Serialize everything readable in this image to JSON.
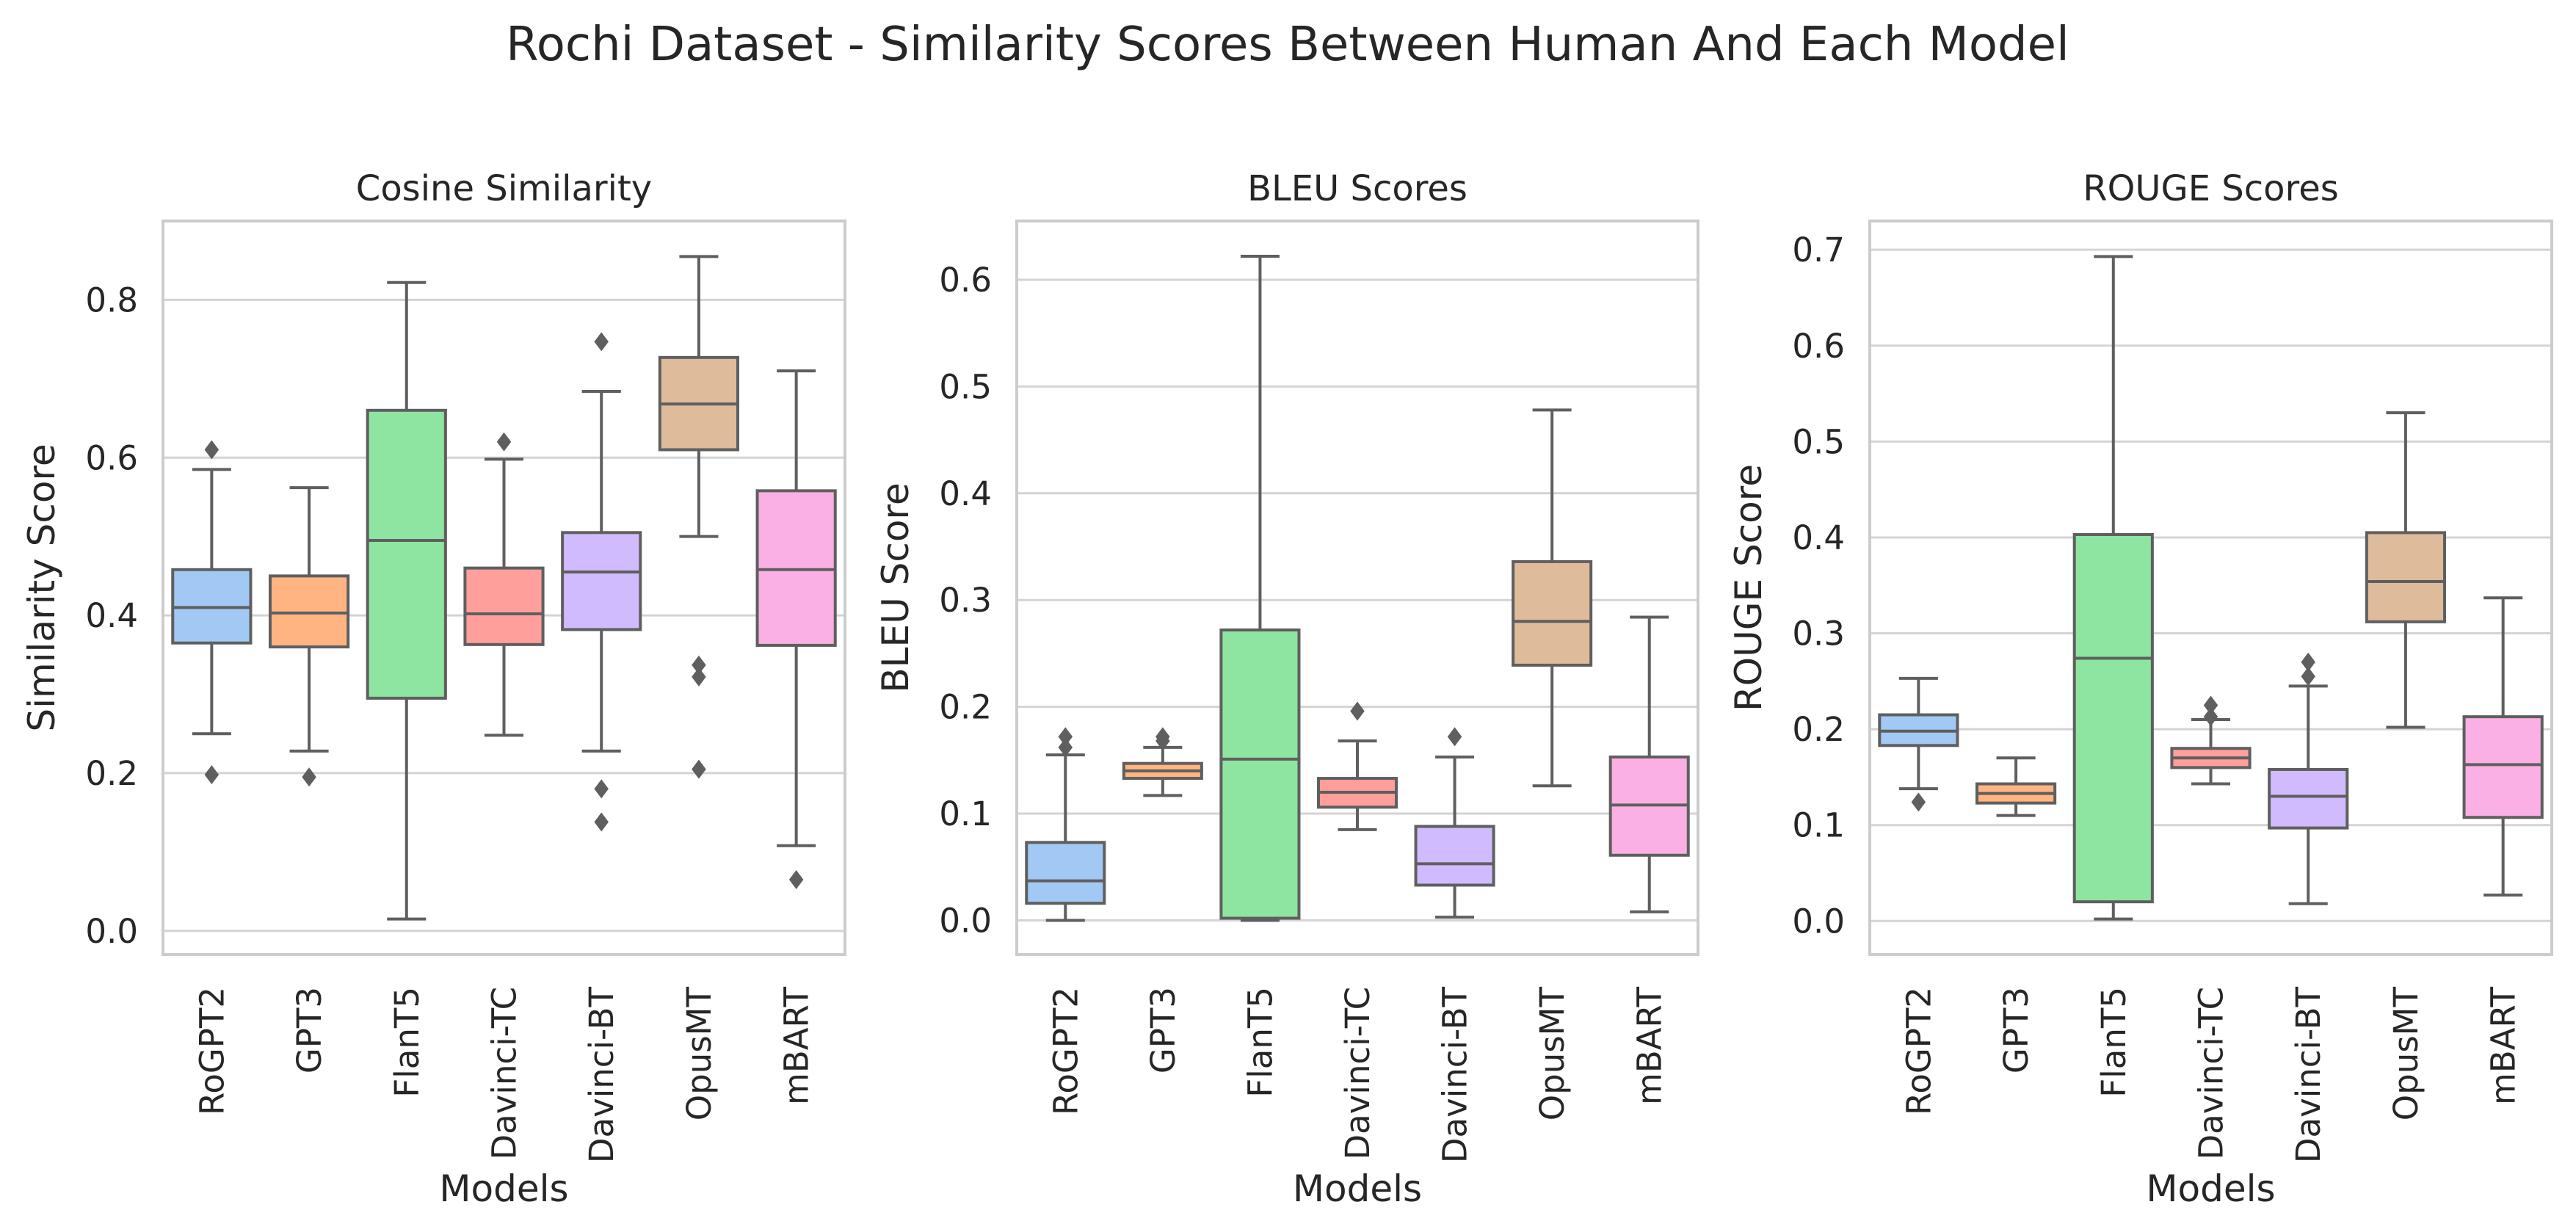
{
  "title": "Rochi Dataset - Similarity Scores Between Human And Each Model",
  "colors": {
    "box_fills": [
      "#a1c9f4",
      "#ffb482",
      "#8de5a1",
      "#ff9f9b",
      "#d0bbff",
      "#debb9b",
      "#fab0e4"
    ],
    "lines": "#5f5f5f",
    "grid": "#d4d4d4",
    "frame": "#cccccc"
  },
  "chart_data": [
    {
      "type": "box",
      "title": "Cosine Similarity",
      "xlabel": "Models",
      "ylabel": "Similarity Score",
      "ylim": [
        -0.03,
        0.9
      ],
      "yticks": [
        0.0,
        0.2,
        0.4,
        0.6,
        0.8
      ],
      "grid": true,
      "categories": [
        "RoGPT2",
        "GPT3",
        "FlanT5",
        "Davinci-TC",
        "Davinci-BT",
        "OpusMT",
        "mBART"
      ],
      "boxes": [
        {
          "whislo": 0.25,
          "q1": 0.365,
          "med": 0.41,
          "q3": 0.458,
          "whishi": 0.585,
          "fliers": [
            0.61,
            0.198
          ]
        },
        {
          "whislo": 0.228,
          "q1": 0.36,
          "med": 0.403,
          "q3": 0.45,
          "whishi": 0.562,
          "fliers": [
            0.195
          ]
        },
        {
          "whislo": 0.015,
          "q1": 0.295,
          "med": 0.495,
          "q3": 0.66,
          "whishi": 0.822,
          "fliers": []
        },
        {
          "whislo": 0.248,
          "q1": 0.363,
          "med": 0.402,
          "q3": 0.46,
          "whishi": 0.598,
          "fliers": [
            0.62
          ]
        },
        {
          "whislo": 0.228,
          "q1": 0.382,
          "med": 0.455,
          "q3": 0.505,
          "whishi": 0.684,
          "fliers": [
            0.747,
            0.18,
            0.138
          ]
        },
        {
          "whislo": 0.5,
          "q1": 0.61,
          "med": 0.668,
          "q3": 0.727,
          "whishi": 0.855,
          "fliers": [
            0.337,
            0.322,
            0.205
          ]
        },
        {
          "whislo": 0.108,
          "q1": 0.362,
          "med": 0.458,
          "q3": 0.558,
          "whishi": 0.71,
          "fliers": [
            0.065
          ]
        }
      ]
    },
    {
      "type": "box",
      "title": "BLEU Scores",
      "xlabel": "Models",
      "ylabel": "BLEU Score",
      "ylim": [
        -0.032,
        0.655
      ],
      "yticks": [
        0.0,
        0.1,
        0.2,
        0.3,
        0.4,
        0.5,
        0.6
      ],
      "grid": true,
      "categories": [
        "RoGPT2",
        "GPT3",
        "FlanT5",
        "Davinci-TC",
        "Davinci-BT",
        "OpusMT",
        "mBART"
      ],
      "boxes": [
        {
          "whislo": 0.0,
          "q1": 0.016,
          "med": 0.037,
          "q3": 0.073,
          "whishi": 0.155,
          "fliers": [
            0.172,
            0.162
          ]
        },
        {
          "whislo": 0.117,
          "q1": 0.133,
          "med": 0.14,
          "q3": 0.147,
          "whishi": 0.162,
          "fliers": [
            0.172,
            0.168
          ]
        },
        {
          "whislo": 0.0,
          "q1": 0.002,
          "med": 0.151,
          "q3": 0.272,
          "whishi": 0.622,
          "fliers": []
        },
        {
          "whislo": 0.085,
          "q1": 0.106,
          "med": 0.12,
          "q3": 0.133,
          "whishi": 0.168,
          "fliers": [
            0.196
          ]
        },
        {
          "whislo": 0.003,
          "q1": 0.033,
          "med": 0.053,
          "q3": 0.088,
          "whishi": 0.153,
          "fliers": [
            0.172
          ]
        },
        {
          "whislo": 0.126,
          "q1": 0.239,
          "med": 0.28,
          "q3": 0.336,
          "whishi": 0.478,
          "fliers": []
        },
        {
          "whislo": 0.008,
          "q1": 0.061,
          "med": 0.108,
          "q3": 0.153,
          "whishi": 0.284,
          "fliers": []
        }
      ]
    },
    {
      "type": "box",
      "title": "ROUGE Scores",
      "xlabel": "Models",
      "ylabel": "ROUGE Score",
      "ylim": [
        -0.035,
        0.73
      ],
      "yticks": [
        0.0,
        0.1,
        0.2,
        0.3,
        0.4,
        0.5,
        0.6,
        0.7
      ],
      "grid": true,
      "categories": [
        "RoGPT2",
        "GPT3",
        "FlanT5",
        "Davinci-TC",
        "Davinci-BT",
        "OpusMT",
        "mBART"
      ],
      "boxes": [
        {
          "whislo": 0.138,
          "q1": 0.183,
          "med": 0.198,
          "q3": 0.215,
          "whishi": 0.253,
          "fliers": [
            0.124
          ]
        },
        {
          "whislo": 0.11,
          "q1": 0.123,
          "med": 0.133,
          "q3": 0.143,
          "whishi": 0.17,
          "fliers": []
        },
        {
          "whislo": 0.002,
          "q1": 0.02,
          "med": 0.274,
          "q3": 0.403,
          "whishi": 0.693,
          "fliers": []
        },
        {
          "whislo": 0.143,
          "q1": 0.16,
          "med": 0.17,
          "q3": 0.18,
          "whishi": 0.21,
          "fliers": [
            0.225,
            0.213
          ]
        },
        {
          "whislo": 0.018,
          "q1": 0.097,
          "med": 0.13,
          "q3": 0.158,
          "whishi": 0.245,
          "fliers": [
            0.27,
            0.255
          ]
        },
        {
          "whislo": 0.202,
          "q1": 0.312,
          "med": 0.354,
          "q3": 0.405,
          "whishi": 0.53,
          "fliers": []
        },
        {
          "whislo": 0.027,
          "q1": 0.108,
          "med": 0.163,
          "q3": 0.213,
          "whishi": 0.337,
          "fliers": []
        }
      ]
    }
  ]
}
